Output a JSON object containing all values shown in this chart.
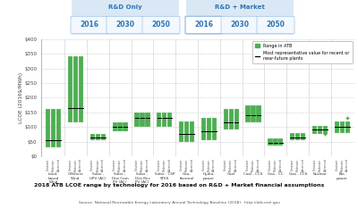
{
  "title": "2018 ATB LCOE range by technology for 2016 based on R&D + Market financial assumptions",
  "source": "Source: National Renewable Energy Laboratory Annual Technology Baseline (2018).  http://atb.nrel.gov",
  "ylabel": "LCOE (2016$/MWh)",
  "ylim": [
    0,
    400
  ],
  "yticks": [
    0,
    50,
    100,
    150,
    200,
    250,
    300,
    350,
    400
  ],
  "ytick_labels": [
    "$0",
    "$50",
    "$100",
    "$150",
    "$200",
    "$250",
    "$300",
    "$350",
    "$400"
  ],
  "legend_box_label": "Range in ATB",
  "legend_line_label": "Most representative value for recent or\nnear-future plants",
  "bar_color": "#4CAF50",
  "line_color": "#000000",
  "grid_color": "#CCCCCC",
  "tab_rd_label": "R&D Only",
  "tab_market_label": "R&D + Market",
  "year_labels": [
    "2016",
    "2030",
    "2050"
  ],
  "categories": [
    "Land-\nbased\nWind",
    "Offshore\nWind",
    "Solar -\nUPV (AC)",
    "Solar -\nDist Com\nPV (AC)",
    "Solar -\nDist Res\nPV (AC)",
    "Solar - CSP\nSTES",
    "Geo-\nthermal",
    "Hydro-\npower",
    "Coal",
    "Coal - CCS",
    "Gas - CC",
    "Gas - CCS",
    "Nuclear",
    "Bio-\npower"
  ],
  "subcats": [
    "Constant",
    "Moderate",
    "Advanced"
  ],
  "bars": [
    {
      "cat": 0,
      "sub": 0,
      "low": 30,
      "high": 160,
      "mid": 55
    },
    {
      "cat": 0,
      "sub": 1,
      "low": 30,
      "high": 160,
      "mid": 55
    },
    {
      "cat": 0,
      "sub": 2,
      "low": 30,
      "high": 160,
      "mid": 55
    },
    {
      "cat": 1,
      "sub": 0,
      "low": 115,
      "high": 340,
      "mid": 165
    },
    {
      "cat": 1,
      "sub": 1,
      "low": 115,
      "high": 340,
      "mid": 165
    },
    {
      "cat": 1,
      "sub": 2,
      "low": 115,
      "high": 340,
      "mid": 165
    },
    {
      "cat": 2,
      "sub": 0,
      "low": 55,
      "high": 75,
      "mid": 65
    },
    {
      "cat": 2,
      "sub": 1,
      "low": 55,
      "high": 75,
      "mid": 65
    },
    {
      "cat": 2,
      "sub": 2,
      "low": 55,
      "high": 75,
      "mid": 65
    },
    {
      "cat": 3,
      "sub": 0,
      "low": 85,
      "high": 115,
      "mid": 100
    },
    {
      "cat": 3,
      "sub": 1,
      "low": 85,
      "high": 115,
      "mid": 100
    },
    {
      "cat": 3,
      "sub": 2,
      "low": 85,
      "high": 115,
      "mid": 100
    },
    {
      "cat": 4,
      "sub": 0,
      "low": 100,
      "high": 150,
      "mid": 130
    },
    {
      "cat": 4,
      "sub": 1,
      "low": 100,
      "high": 150,
      "mid": 130
    },
    {
      "cat": 4,
      "sub": 2,
      "low": 100,
      "high": 150,
      "mid": 130
    },
    {
      "cat": 5,
      "sub": 0,
      "low": 100,
      "high": 150,
      "mid": 130
    },
    {
      "cat": 5,
      "sub": 1,
      "low": 100,
      "high": 150,
      "mid": 130
    },
    {
      "cat": 5,
      "sub": 2,
      "low": 100,
      "high": 150,
      "mid": 130
    },
    {
      "cat": 6,
      "sub": 0,
      "low": 50,
      "high": 120,
      "mid": 75
    },
    {
      "cat": 6,
      "sub": 1,
      "low": 50,
      "high": 120,
      "mid": 75
    },
    {
      "cat": 6,
      "sub": 2,
      "low": 50,
      "high": 120,
      "mid": 75
    },
    {
      "cat": 7,
      "sub": 0,
      "low": 55,
      "high": 130,
      "mid": 85
    },
    {
      "cat": 7,
      "sub": 1,
      "low": 55,
      "high": 130,
      "mid": 85
    },
    {
      "cat": 7,
      "sub": 2,
      "low": 55,
      "high": 130,
      "mid": 85
    },
    {
      "cat": 8,
      "sub": 0,
      "low": 90,
      "high": 160,
      "mid": 115
    },
    {
      "cat": 8,
      "sub": 1,
      "low": 90,
      "high": 160,
      "mid": 115
    },
    {
      "cat": 8,
      "sub": 2,
      "low": 90,
      "high": 160,
      "mid": 115
    },
    {
      "cat": 9,
      "sub": 0,
      "low": 115,
      "high": 175,
      "mid": 140
    },
    {
      "cat": 9,
      "sub": 1,
      "low": 115,
      "high": 175,
      "mid": 140
    },
    {
      "cat": 9,
      "sub": 2,
      "low": 115,
      "high": 175,
      "mid": 140
    },
    {
      "cat": 10,
      "sub": 0,
      "low": 35,
      "high": 60,
      "mid": 45
    },
    {
      "cat": 10,
      "sub": 1,
      "low": 35,
      "high": 60,
      "mid": 45
    },
    {
      "cat": 10,
      "sub": 2,
      "low": 35,
      "high": 60,
      "mid": 45
    },
    {
      "cat": 11,
      "sub": 0,
      "low": 55,
      "high": 80,
      "mid": 65
    },
    {
      "cat": 11,
      "sub": 1,
      "low": 55,
      "high": 80,
      "mid": 65
    },
    {
      "cat": 11,
      "sub": 2,
      "low": 55,
      "high": 80,
      "mid": 65
    },
    {
      "cat": 12,
      "sub": 0,
      "low": 75,
      "high": 105,
      "mid": 90
    },
    {
      "cat": 12,
      "sub": 1,
      "low": 75,
      "high": 105,
      "mid": 90
    },
    {
      "cat": 12,
      "sub": 2,
      "low": 75,
      "high": 105,
      "mid": 90
    },
    {
      "cat": 13,
      "sub": 0,
      "low": 80,
      "high": 120,
      "mid": 100
    },
    {
      "cat": 13,
      "sub": 1,
      "low": 80,
      "high": 120,
      "mid": 100
    },
    {
      "cat": 13,
      "sub": 2,
      "low": 80,
      "high": 120,
      "mid": 100
    }
  ],
  "outliers": [
    {
      "cat": 13,
      "sub": 2,
      "y": 130,
      "marker": "+"
    },
    {
      "cat": 12,
      "sub": 2,
      "y": 75,
      "marker": "+"
    }
  ]
}
